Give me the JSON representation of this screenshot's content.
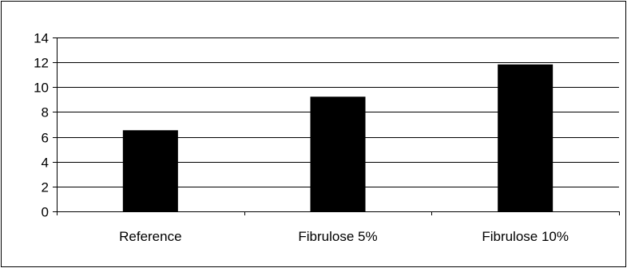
{
  "chart_data": {
    "type": "bar",
    "categories": [
      "Reference",
      "Fibrulose 5%",
      "Fibrulose 10%"
    ],
    "values": [
      6.5,
      9.2,
      11.8
    ],
    "title": "",
    "xlabel": "",
    "ylabel": "",
    "ylim": [
      0,
      14
    ],
    "y_ticks": [
      0,
      2,
      4,
      6,
      8,
      10,
      12,
      14
    ],
    "grid": "horizontal",
    "legend": "none",
    "bar_color": "#000000",
    "grid_color": "#000000",
    "border_color": "#000000"
  }
}
